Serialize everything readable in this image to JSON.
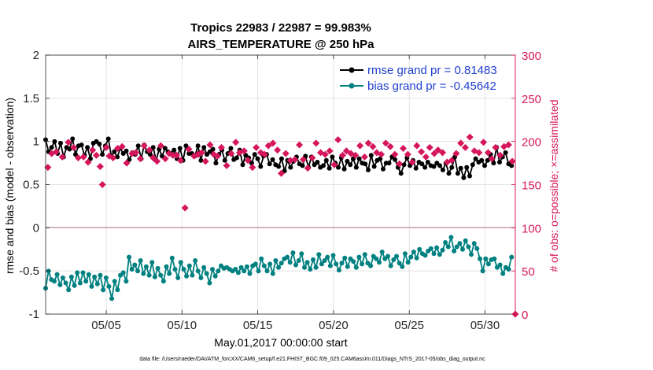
{
  "chart_data": {
    "type": "line",
    "title": "Tropics 22983 / 22987 = 99.983%",
    "subtitle": "AIRS_TEMPERATURE @ 250 hPa",
    "xlabel": "May.01,2017 00:00:00 start",
    "ylabel": "rmse and bias (model - observation)",
    "y2label": "# of obs: o=possible; ×=assimilated",
    "footer": "data file: /Users/raeder/DAI/ATM_forcXX/CAM6_setup/f.e21.FHIST_BGC.f09_025.CAM6assim.011/Diags_NTrS_2017-05/obs_diag_output.nc",
    "xlim": [
      1,
      32
    ],
    "ylim": [
      -1,
      2
    ],
    "y2lim": [
      0,
      300
    ],
    "x_ticks": [
      5,
      10,
      15,
      20,
      25,
      30
    ],
    "x_tick_labels": [
      "05/05",
      "05/10",
      "05/15",
      "05/20",
      "05/25",
      "05/30"
    ],
    "y_ticks": [
      -1,
      -0.5,
      0,
      0.5,
      1,
      1.5,
      2
    ],
    "y_tick_labels": [
      "-1",
      "-0.5",
      "0",
      "0.5",
      "1",
      "1.5",
      "2"
    ],
    "y2_ticks": [
      0,
      50,
      100,
      150,
      200,
      250,
      300
    ],
    "y2_tick_labels": [
      "0",
      "50",
      "100",
      "150",
      "200",
      "250",
      "300"
    ],
    "grid": true,
    "legend_position": "top-right",
    "series": [
      {
        "name": "rmse grand pr = 0.81483",
        "color": "#000000",
        "values": [
          1.02,
          0.88,
          0.93,
          1.0,
          0.86,
          0.98,
          0.82,
          0.93,
          0.91,
          1.03,
          0.85,
          0.95,
          0.96,
          0.84,
          0.93,
          0.8,
          0.98,
          1.0,
          0.97,
          0.85,
          0.95,
          1.03,
          0.83,
          0.88,
          0.82,
          0.92,
          0.86,
          0.89,
          0.79,
          0.87,
          0.85,
          0.95,
          0.8,
          0.96,
          0.88,
          0.85,
          0.93,
          0.78,
          0.91,
          0.83,
          0.92,
          0.88,
          0.86,
          0.9,
          0.8,
          0.92,
          0.78,
          0.95,
          0.86,
          0.86,
          0.83,
          0.95,
          0.78,
          0.93,
          0.85,
          0.88,
          0.91,
          0.75,
          0.85,
          0.9,
          0.78,
          0.86,
          0.92,
          0.79,
          0.81,
          0.9,
          0.73,
          0.84,
          0.81,
          0.75,
          0.85,
          0.8,
          0.71,
          0.83,
          0.85,
          0.74,
          0.79,
          0.73,
          0.71,
          0.8,
          0.66,
          0.78,
          0.7,
          0.77,
          0.82,
          0.74,
          0.72,
          0.83,
          0.7,
          0.82,
          0.73,
          0.76,
          0.7,
          0.72,
          0.78,
          0.69,
          0.82,
          0.75,
          0.7,
          0.81,
          0.68,
          0.77,
          0.73,
          0.8,
          0.7,
          0.8,
          0.75,
          0.74,
          0.67,
          0.84,
          0.71,
          0.78,
          0.8,
          0.68,
          0.75,
          0.75,
          0.82,
          0.79,
          0.7,
          0.63,
          0.73,
          0.81,
          0.72,
          0.78,
          0.69,
          0.76,
          0.74,
          0.7,
          0.76,
          0.72,
          0.71,
          0.75,
          0.72,
          0.67,
          0.75,
          0.63,
          0.7,
          0.82,
          0.63,
          0.69,
          0.58,
          0.7,
          0.6,
          0.73,
          0.8,
          0.76,
          0.78,
          0.72,
          0.78,
          0.85,
          0.75,
          0.93,
          0.76,
          0.82,
          0.87,
          0.74,
          0.72
        ]
      },
      {
        "name": "bias grand pr = -0.45642",
        "color": "#008080",
        "values": [
          -0.7,
          -0.5,
          -0.6,
          -0.62,
          -0.54,
          -0.66,
          -0.58,
          -0.64,
          -0.72,
          -0.57,
          -0.67,
          -0.52,
          -0.64,
          -0.52,
          -0.62,
          -0.54,
          -0.68,
          -0.57,
          -0.65,
          -0.55,
          -0.72,
          -0.58,
          -0.68,
          -0.82,
          -0.62,
          -0.72,
          -0.55,
          -0.52,
          -0.62,
          -0.34,
          -0.48,
          -0.43,
          -0.5,
          -0.38,
          -0.53,
          -0.45,
          -0.55,
          -0.4,
          -0.57,
          -0.47,
          -0.55,
          -0.62,
          -0.45,
          -0.53,
          -0.35,
          -0.48,
          -0.58,
          -0.4,
          -0.48,
          -0.56,
          -0.44,
          -0.55,
          -0.38,
          -0.5,
          -0.58,
          -0.46,
          -0.53,
          -0.64,
          -0.48,
          -0.56,
          -0.5,
          -0.44,
          -0.47,
          -0.46,
          -0.48,
          -0.5,
          -0.48,
          -0.52,
          -0.46,
          -0.5,
          -0.45,
          -0.53,
          -0.44,
          -0.42,
          -0.5,
          -0.36,
          -0.44,
          -0.5,
          -0.42,
          -0.53,
          -0.38,
          -0.46,
          -0.41,
          -0.36,
          -0.34,
          -0.4,
          -0.29,
          -0.43,
          -0.38,
          -0.3,
          -0.46,
          -0.4,
          -0.48,
          -0.37,
          -0.46,
          -0.31,
          -0.42,
          -0.38,
          -0.34,
          -0.44,
          -0.32,
          -0.42,
          -0.49,
          -0.41,
          -0.35,
          -0.45,
          -0.36,
          -0.39,
          -0.46,
          -0.34,
          -0.42,
          -0.31,
          -0.41,
          -0.44,
          -0.33,
          -0.36,
          -0.4,
          -0.28,
          -0.36,
          -0.33,
          -0.44,
          -0.37,
          -0.33,
          -0.41,
          -0.45,
          -0.3,
          -0.4,
          -0.34,
          -0.28,
          -0.35,
          -0.25,
          -0.3,
          -0.32,
          -0.27,
          -0.24,
          -0.3,
          -0.23,
          -0.31,
          -0.26,
          -0.17,
          -0.22,
          -0.11,
          -0.27,
          -0.22,
          -0.18,
          -0.25,
          -0.15,
          -0.22,
          -0.31,
          -0.18,
          -0.24,
          -0.36,
          -0.5,
          -0.36,
          -0.42,
          -0.37,
          -0.36,
          -0.46,
          -0.43,
          -0.53,
          -0.46,
          -0.48,
          -0.34
        ]
      },
      {
        "name": "obs count possible",
        "color": "#d6165c",
        "axis": "right",
        "marker": "circle",
        "values_note": "single visible point at the right axis",
        "x": [
          32
        ],
        "values": [
          0
        ]
      },
      {
        "name": "obs count assimilated",
        "color": "#d6165c",
        "axis": "right",
        "marker": "x",
        "x": [
          1.15,
          1.4,
          1.7,
          2.1,
          2.5,
          2.85,
          3.15,
          3.5,
          3.8,
          4.1,
          4.35,
          4.6,
          4.75,
          5.0,
          5.2,
          5.45,
          5.75,
          6.05,
          6.35,
          6.7,
          6.95,
          7.25,
          7.5,
          7.85,
          8.1,
          8.35,
          8.6,
          8.9,
          9.15,
          9.4,
          9.65,
          9.9,
          10.2,
          10.45,
          10.8,
          11.05,
          11.3,
          11.55,
          11.85,
          12.1,
          12.35,
          12.6,
          12.95,
          13.25,
          13.55,
          13.8,
          14.1,
          14.35,
          14.65,
          14.9,
          15.2,
          15.45,
          15.7,
          16.0,
          16.3,
          16.55,
          16.85,
          17.15,
          17.45,
          17.75,
          18.0,
          18.3,
          18.6,
          18.85,
          19.15,
          19.45,
          19.75,
          20.05,
          20.3,
          20.6,
          20.85,
          21.15,
          21.45,
          21.75,
          22.05,
          22.3,
          22.6,
          22.85,
          23.15,
          23.45,
          23.75,
          24.05,
          24.35,
          24.6,
          24.9,
          25.2,
          25.5,
          25.8,
          26.1,
          26.35,
          26.65,
          26.9,
          27.2,
          27.5,
          27.8,
          28.1,
          28.4,
          28.7,
          29.0,
          29.3,
          29.6,
          29.9,
          30.2,
          30.45,
          30.7,
          31.0,
          31.25,
          31.55,
          31.8
        ],
        "values": [
          170,
          186,
          188,
          182,
          199,
          193,
          181,
          182,
          176,
          190,
          184,
          171,
          150,
          193,
          183,
          181,
          192,
          194,
          175,
          186,
          187,
          180,
          195,
          190,
          181,
          177,
          195,
          180,
          186,
          184,
          184,
          178,
          123,
          191,
          183,
          185,
          187,
          177,
          196,
          185,
          183,
          193,
          172,
          186,
          199,
          187,
          189,
          178,
          170,
          193,
          187,
          185,
          195,
          198,
          190,
          163,
          186,
          178,
          179,
          196,
          179,
          169,
          181,
          198,
          187,
          185,
          189,
          173,
          202,
          184,
          189,
          186,
          184,
          195,
          182,
          198,
          194,
          187,
          185,
          198,
          194,
          185,
          174,
          192,
          185,
          176,
          195,
          188,
          182,
          193,
          186,
          190,
          187,
          176,
          178,
          186,
          198,
          193,
          205,
          189,
          187,
          199,
          187,
          180,
          193,
          184,
          194,
          196,
          177
        ]
      }
    ]
  }
}
